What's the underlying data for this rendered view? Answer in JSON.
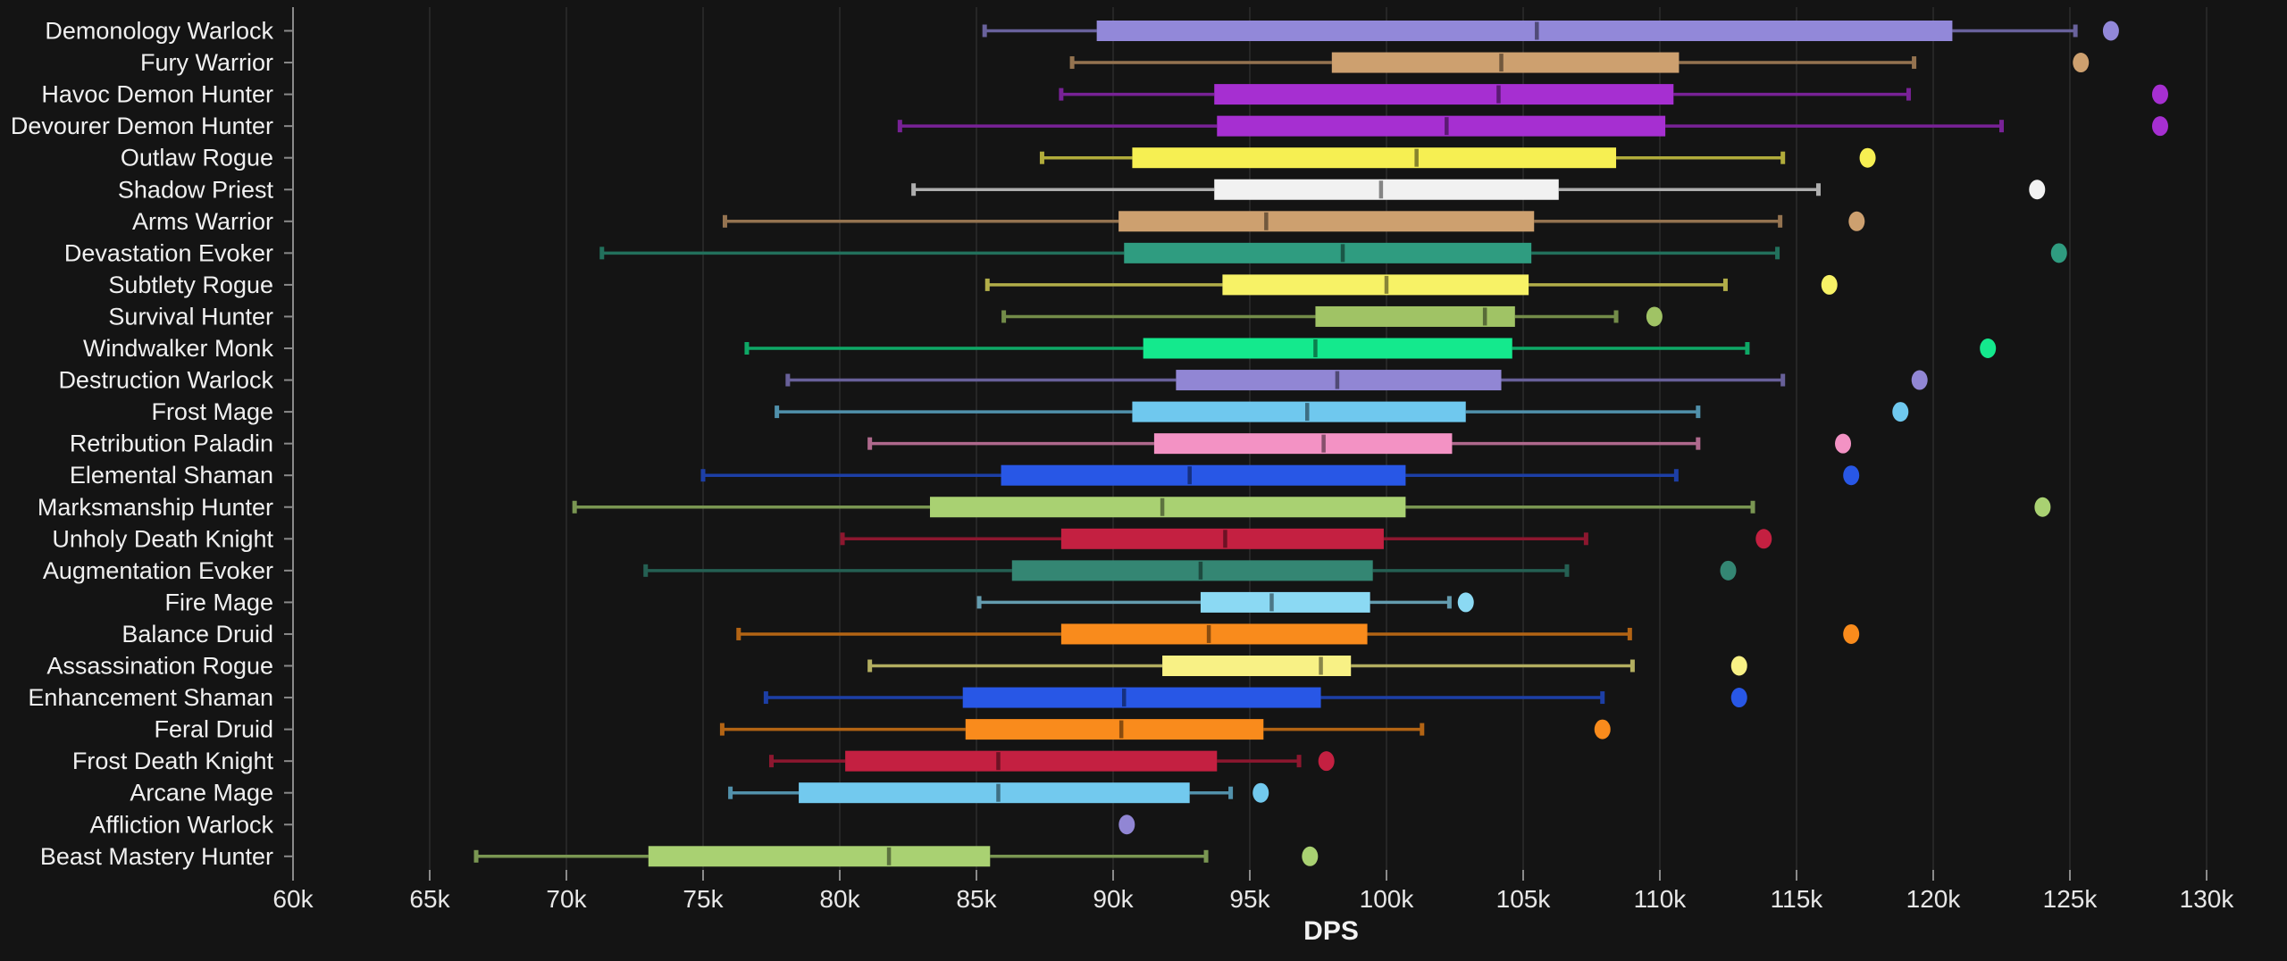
{
  "page": {
    "background_color": "#141414",
    "grid_color": "#2b2b2b",
    "axis_color": "#8a8a8a",
    "label_color": "#f0f0f0"
  },
  "chart_data": {
    "type": "boxplot",
    "orientation": "horizontal",
    "title": "",
    "xlabel": "DPS",
    "ylabel": "",
    "grid": "vertical-only",
    "x_axis": {
      "min": 60000,
      "max": 130000,
      "tick_step": 5000,
      "tick_labels": [
        "60k",
        "65k",
        "70k",
        "75k",
        "80k",
        "85k",
        "90k",
        "95k",
        "100k",
        "105k",
        "110k",
        "115k",
        "120k",
        "125k",
        "130k"
      ]
    },
    "series": [
      {
        "label": "Demonology Warlock",
        "color": "#9288d9",
        "low": 85300,
        "q1": 89400,
        "median": 105500,
        "q3": 120700,
        "high": 125200,
        "outlier": 126500
      },
      {
        "label": "Fury Warrior",
        "color": "#cda06f",
        "low": 88500,
        "q1": 98000,
        "median": 104200,
        "q3": 110700,
        "high": 119300,
        "outlier": 125400
      },
      {
        "label": "Havoc Demon Hunter",
        "color": "#a62fd1",
        "low": 88100,
        "q1": 93700,
        "median": 104100,
        "q3": 110500,
        "high": 119100,
        "outlier": 128300
      },
      {
        "label": "Devourer Demon Hunter",
        "color": "#a62fd1",
        "low": 82200,
        "q1": 93800,
        "median": 102200,
        "q3": 110200,
        "high": 122500,
        "outlier": 128300
      },
      {
        "label": "Outlaw Rogue",
        "color": "#f6ef52",
        "low": 87400,
        "q1": 90700,
        "median": 101100,
        "q3": 108400,
        "high": 114500,
        "outlier": 117600
      },
      {
        "label": "Shadow Priest",
        "color": "#f1f1f1",
        "low": 82700,
        "q1": 93700,
        "median": 99800,
        "q3": 106300,
        "high": 115800,
        "outlier": 123800
      },
      {
        "label": "Arms Warrior",
        "color": "#cda06f",
        "low": 75800,
        "q1": 90200,
        "median": 95600,
        "q3": 105400,
        "high": 114400,
        "outlier": 117200
      },
      {
        "label": "Devastation Evoker",
        "color": "#2f9c80",
        "low": 71300,
        "q1": 90400,
        "median": 98400,
        "q3": 105300,
        "high": 114300,
        "outlier": 124600
      },
      {
        "label": "Subtlety Rogue",
        "color": "#f7f266",
        "low": 85400,
        "q1": 94000,
        "median": 100000,
        "q3": 105200,
        "high": 112400,
        "outlier": 116200
      },
      {
        "label": "Survival Hunter",
        "color": "#a0c365",
        "low": 86000,
        "q1": 97400,
        "median": 103600,
        "q3": 104700,
        "high": 108400,
        "outlier": 109800
      },
      {
        "label": "Windwalker Monk",
        "color": "#14e98d",
        "low": 76600,
        "q1": 91100,
        "median": 97400,
        "q3": 104600,
        "high": 113200,
        "outlier": 122000
      },
      {
        "label": "Destruction Warlock",
        "color": "#9186d4",
        "low": 78100,
        "q1": 92300,
        "median": 98200,
        "q3": 104200,
        "high": 114500,
        "outlier": 119500
      },
      {
        "label": "Frost Mage",
        "color": "#6fc8ee",
        "low": 77700,
        "q1": 90700,
        "median": 97100,
        "q3": 102900,
        "high": 111400,
        "outlier": 118800
      },
      {
        "label": "Retribution Paladin",
        "color": "#f392c4",
        "low": 81100,
        "q1": 91500,
        "median": 97700,
        "q3": 102400,
        "high": 111400,
        "outlier": 116700
      },
      {
        "label": "Elemental Shaman",
        "color": "#2857e6",
        "low": 75000,
        "q1": 85900,
        "median": 92800,
        "q3": 100700,
        "high": 110600,
        "outlier": 117000
      },
      {
        "label": "Marksmanship Hunter",
        "color": "#a9d172",
        "low": 70300,
        "q1": 83300,
        "median": 91800,
        "q3": 100700,
        "high": 113400,
        "outlier": 124000
      },
      {
        "label": "Unholy Death Knight",
        "color": "#c42041",
        "low": 80100,
        "q1": 88100,
        "median": 94100,
        "q3": 99900,
        "high": 107300,
        "outlier": 113800
      },
      {
        "label": "Augmentation Evoker",
        "color": "#348673",
        "low": 72900,
        "q1": 86300,
        "median": 93200,
        "q3": 99500,
        "high": 106600,
        "outlier": 112500
      },
      {
        "label": "Fire Mage",
        "color": "#8bd9f3",
        "low": 85100,
        "q1": 93200,
        "median": 95800,
        "q3": 99400,
        "high": 102300,
        "outlier": 102900
      },
      {
        "label": "Balance Druid",
        "color": "#f98b1c",
        "low": 76300,
        "q1": 88100,
        "median": 93500,
        "q3": 99300,
        "high": 108900,
        "outlier": 117000
      },
      {
        "label": "Assassination Rogue",
        "color": "#f8f185",
        "low": 81100,
        "q1": 91800,
        "median": 97600,
        "q3": 98700,
        "high": 109000,
        "outlier": 112900
      },
      {
        "label": "Enhancement Shaman",
        "color": "#2857e6",
        "low": 77300,
        "q1": 84500,
        "median": 90400,
        "q3": 97600,
        "high": 107900,
        "outlier": 112900
      },
      {
        "label": "Feral Druid",
        "color": "#f98b1c",
        "low": 75700,
        "q1": 84600,
        "median": 90300,
        "q3": 95500,
        "high": 101300,
        "outlier": 107900
      },
      {
        "label": "Frost Death Knight",
        "color": "#c42041",
        "low": 77500,
        "q1": 80200,
        "median": 85800,
        "q3": 93800,
        "high": 96800,
        "outlier": 97800
      },
      {
        "label": "Arcane Mage",
        "color": "#72c9ee",
        "low": 76000,
        "q1": 78500,
        "median": 85800,
        "q3": 92800,
        "high": 94300,
        "outlier": 95400
      },
      {
        "label": "Affliction Warlock",
        "color": "#9186d4",
        "low": null,
        "q1": null,
        "median": null,
        "q3": null,
        "high": null,
        "outlier": 90500
      },
      {
        "label": "Beast Mastery Hunter",
        "color": "#a9d172",
        "low": 66700,
        "q1": 73000,
        "median": 81800,
        "q3": 85500,
        "high": 93400,
        "outlier": 97200
      }
    ]
  }
}
